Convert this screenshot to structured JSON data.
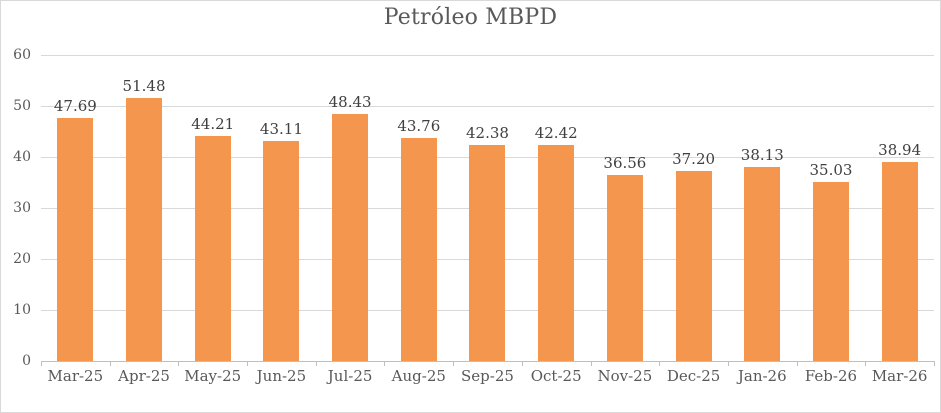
{
  "chart_data": {
    "type": "bar",
    "title": "Petróleo MBPD",
    "categories": [
      "Mar-25",
      "Apr-25",
      "May-25",
      "Jun-25",
      "Jul-25",
      "Aug-25",
      "Sep-25",
      "Oct-25",
      "Nov-25",
      "Dec-25",
      "Jan-26",
      "Feb-26",
      "Mar-26"
    ],
    "values": [
      47.69,
      51.48,
      44.21,
      43.11,
      48.43,
      43.76,
      42.38,
      42.42,
      36.56,
      37.2,
      38.13,
      35.03,
      38.94
    ],
    "value_labels": [
      "47.69",
      "51.48",
      "44.21",
      "43.11",
      "48.43",
      "43.76",
      "42.38",
      "42.42",
      "36.56",
      "37.20",
      "38.13",
      "35.03",
      "38.94"
    ],
    "xlabel": "",
    "ylabel": "",
    "ylim": [
      0,
      60
    ],
    "yticks": [
      0,
      10,
      20,
      30,
      40,
      50,
      60
    ],
    "grid": true,
    "legend": false,
    "data_labels": true,
    "colors": {
      "bar": "#f4964d",
      "gridline": "#d9d9d9",
      "axis_line": "#bfbfbf",
      "value_label": "#404040",
      "tick_label": "#595959",
      "title": "#595959",
      "background": "#ffffff",
      "frame_border": "#d9d9d9"
    }
  }
}
